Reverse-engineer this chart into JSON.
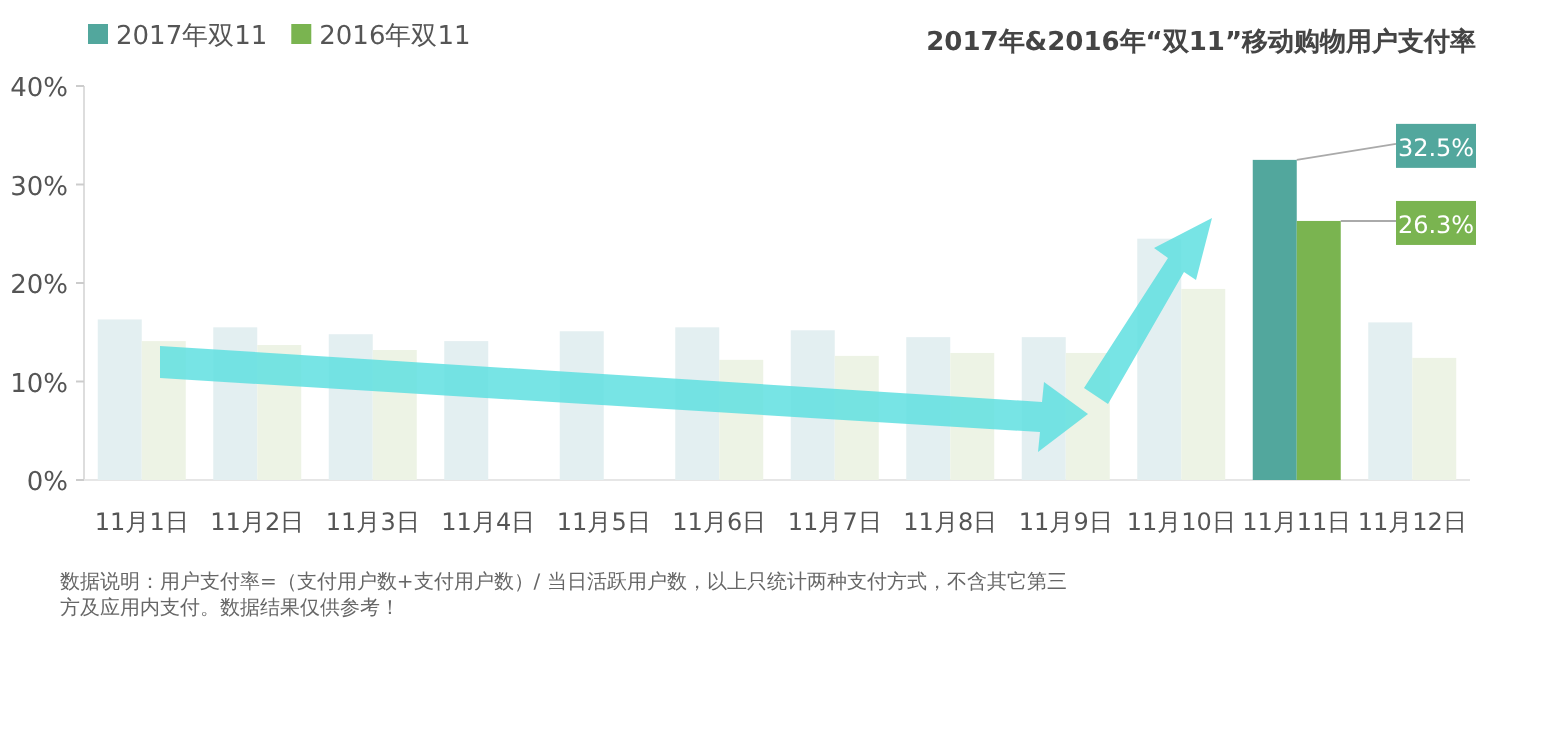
{
  "chart_data": {
    "type": "bar",
    "title": "2017年&2016年“双11”移动购物用户支付率",
    "categories": [
      "11月1日",
      "11月2日",
      "11月3日",
      "11月4日",
      "11月5日",
      "11月6日",
      "11月7日",
      "11月8日",
      "11月9日",
      "11月10日",
      "11月11日",
      "11月12日"
    ],
    "series": [
      {
        "name": "2017年双11",
        "color": "#52a79d",
        "colors": [
          "#e3eff1",
          "#e3eff1",
          "#e3eff1",
          "#e3eff1",
          "#e3eff1",
          "#e3eff1",
          "#e3eff1",
          "#e3eff1",
          "#e3eff1",
          "#e3eff1",
          "#52a79d",
          "#e3eff1"
        ],
        "values": [
          16.3,
          15.5,
          14.8,
          14.1,
          15.1,
          15.5,
          15.2,
          14.5,
          14.5,
          24.5,
          32.5,
          16.0
        ],
        "value_labels": [
          null,
          null,
          null,
          null,
          null,
          null,
          null,
          null,
          null,
          null,
          "32.5%",
          null
        ]
      },
      {
        "name": "2016年双11",
        "color": "#7ab450",
        "colors": [
          "#edf3e5",
          "#edf3e5",
          "#edf3e5",
          null,
          null,
          "#edf3e5",
          "#edf3e5",
          "#edf3e5",
          "#edf3e5",
          "#edf3e5",
          "#7ab450",
          "#edf3e5"
        ],
        "values": [
          14.1,
          13.7,
          13.2,
          null,
          null,
          12.2,
          12.6,
          12.9,
          12.9,
          19.4,
          26.3,
          12.4
        ],
        "value_labels": [
          null,
          null,
          null,
          null,
          null,
          null,
          null,
          null,
          null,
          null,
          "26.3%",
          null
        ]
      }
    ],
    "ylim": [
      0,
      40
    ],
    "yticks": [
      {
        "value": 0,
        "label": "0%"
      },
      {
        "value": 10,
        "label": "10%"
      },
      {
        "value": 20,
        "label": "20%"
      },
      {
        "value": 30,
        "label": "30%"
      },
      {
        "value": 40,
        "label": "40%"
      }
    ],
    "grid": false,
    "legend": "top left",
    "annotations": [
      "数据说明：用户支付率=（支付用户数+支付用户数）/ 当日活跃用户数，以上只统计两种支付方式，不含其它第三方及应用内支付。数据结果仅供参考！"
    ]
  }
}
